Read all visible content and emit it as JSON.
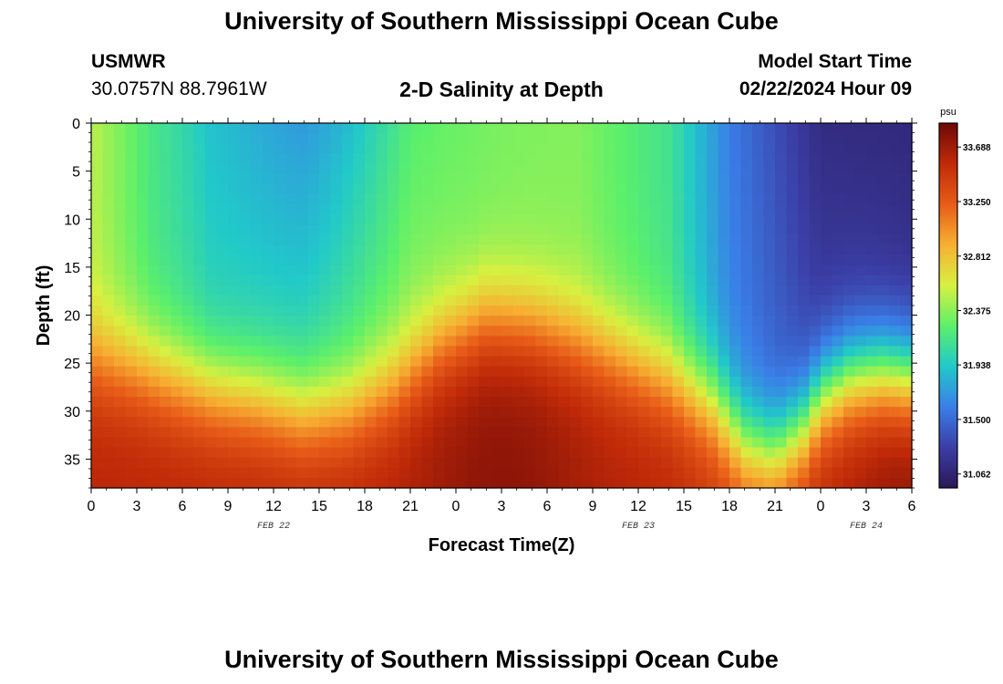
{
  "page": {
    "title": "University of Southern Mississippi Ocean Cube",
    "footer_title": "University of Southern Mississippi Ocean Cube",
    "station": "USMWR",
    "coordinates": "30.0757N  88.7961W",
    "subtitle": "2-D Salinity at Depth",
    "model_start_label": "Model Start Time",
    "model_start_value": "02/22/2024 Hour 09"
  },
  "chart_data": {
    "type": "heatmap",
    "title": "2-D Salinity at Depth",
    "xlabel": "Forecast Time(Z)",
    "ylabel": "Depth (ft)",
    "x_ticks": [
      "0",
      "3",
      "6",
      "9",
      "12",
      "15",
      "18",
      "21",
      "0",
      "3",
      "6",
      "9",
      "12",
      "15",
      "18",
      "21",
      "0",
      "3",
      "6"
    ],
    "x_tick_hours": [
      0,
      3,
      6,
      9,
      12,
      15,
      18,
      21,
      24,
      27,
      30,
      33,
      36,
      39,
      42,
      45,
      48,
      51,
      54
    ],
    "x_range_hours": [
      0,
      54
    ],
    "date_labels": [
      {
        "label": "FEB 22",
        "hour": 12
      },
      {
        "label": "FEB 23",
        "hour": 36
      },
      {
        "label": "FEB 24",
        "hour": 51
      }
    ],
    "y_ticks": [
      0,
      5,
      10,
      15,
      20,
      25,
      30,
      35
    ],
    "y_range": [
      0,
      38
    ],
    "y_inverted": true,
    "colorbar": {
      "unit": "psu",
      "min": 30.95,
      "max": 33.88,
      "ticks": [
        "33.688",
        "33.250",
        "32.812",
        "32.375",
        "31.938",
        "31.500",
        "31.062"
      ],
      "colormap": [
        "#2a1858",
        "#3b3ea6",
        "#3a7fe8",
        "#21c9c9",
        "#5cf06a",
        "#d8f040",
        "#f7b032",
        "#e85c18",
        "#c02a08",
        "#6e0808"
      ]
    },
    "grid": false,
    "interface_depth_profile": {
      "hours": [
        0,
        3,
        5,
        8,
        11,
        14,
        17,
        20,
        23,
        26,
        29,
        32,
        35,
        38,
        41,
        43,
        45,
        47,
        48,
        50,
        52,
        54
      ],
      "depth_ft": [
        24.5,
        25.5,
        26.5,
        28,
        29,
        30.5,
        30,
        27.5,
        23,
        20.5,
        21,
        22.5,
        24.5,
        26.5,
        29.5,
        33.5,
        34.5,
        31.5,
        28.5,
        26.5,
        26,
        26.5
      ]
    }
  }
}
